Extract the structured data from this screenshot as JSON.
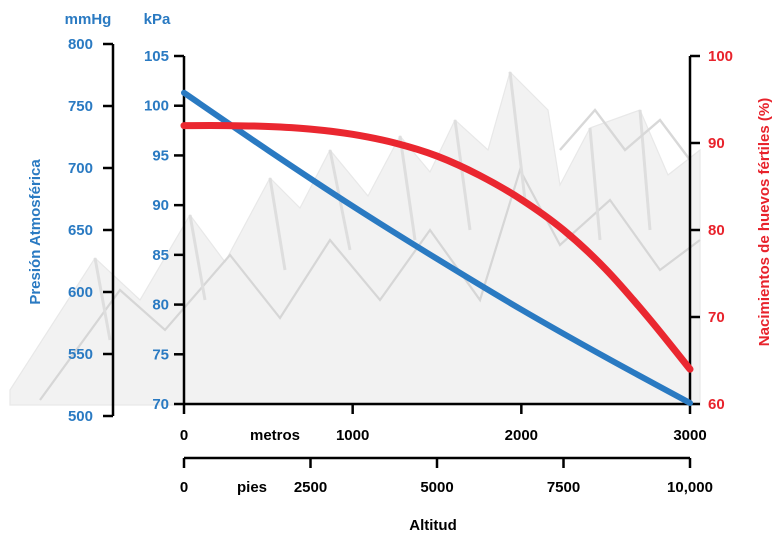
{
  "chart_data": {
    "type": "line",
    "title": "",
    "xlabel": "Altitud",
    "x_unit_label_meters": "metros",
    "x_unit_label_feet": "pies",
    "x_ticks_meters": [
      "0",
      "1000",
      "2000",
      "3000"
    ],
    "x_ticks_feet": [
      "0",
      "2500",
      "5000",
      "7500",
      "10,000"
    ],
    "xlim_meters": [
      0,
      3000
    ],
    "ylabel_left": "Presión Atmosférica",
    "y_unit_mmhg": "mmHg",
    "y_unit_kpa": "kPa",
    "y_ticks_mmhg": [
      "500",
      "550",
      "600",
      "650",
      "700",
      "750",
      "800"
    ],
    "y_ticks_kpa": [
      "70",
      "75",
      "80",
      "85",
      "90",
      "95",
      "100",
      "105"
    ],
    "ylim_kpa": [
      70,
      105
    ],
    "ylim_mmhg": [
      500,
      800
    ],
    "ylabel_right": "Nacimientos de huevos fértiles (%)",
    "y_ticks_right": [
      "60",
      "70",
      "80",
      "90",
      "100"
    ],
    "ylim_right": [
      60,
      100
    ],
    "grid": false,
    "background": "faded mountain illustration",
    "series": [
      {
        "color": "#2a7ac2",
        "axis": "kPa",
        "x": [
          0,
          500,
          1000,
          1500,
          2000,
          2500,
          3000
        ],
        "values": [
          101.3,
          95.5,
          89.9,
          84.6,
          79.5,
          74.7,
          70.1
        ]
      },
      {
        "color": "#ea2730",
        "axis": "right",
        "x": [
          0,
          250,
          500,
          750,
          1000,
          1250,
          1500,
          1750,
          2000,
          2250,
          2500,
          2750,
          3000
        ],
        "values": [
          92,
          92,
          91.9,
          91.6,
          91,
          90,
          88.5,
          86.3,
          83.5,
          80,
          75.5,
          70,
          64
        ]
      }
    ]
  },
  "colors": {
    "pressure_axis": "#2a7ac2",
    "hatch_axis": "#e8232c",
    "text": "#000000"
  }
}
